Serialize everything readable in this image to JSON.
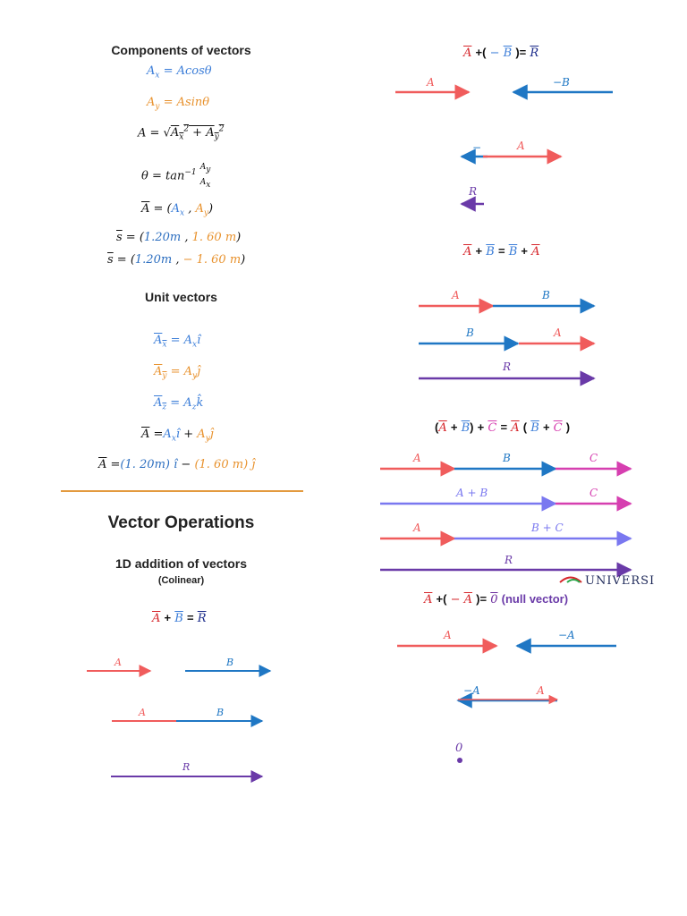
{
  "components": {
    "heading": "Components of vectors",
    "ax": "Ax = Acosθ",
    "ay": "Ay = Asinθ",
    "mag": "A = √(Ax² + Ay²)",
    "theta": "θ = tan⁻¹ (Ay / Ax)",
    "vecA": "A = (Ax , Ay)",
    "s1": "s = (1.20m , 1. 60 m)",
    "s2": "s = (1.20m , − 1. 60 m)"
  },
  "unit": {
    "heading": "Unit vectors",
    "ux": "Ax = Ax î",
    "uy": "Ay = Ay ĵ",
    "uz": "Az = Az k̂",
    "sum": "A = Ax î + Ay ĵ",
    "num": "A = (1. 20m) î − (1. 60 m) ĵ"
  },
  "operations": {
    "heading": "Vector Operations",
    "sub1": "1D addition of vectors",
    "sub2": "(Colinear)",
    "eq": "A + B = R"
  },
  "right": {
    "eq1": "A +( − B )= R",
    "eq2": "A + B = B + A",
    "eq3": "(A + B) + C = A ( B + C )",
    "eq4": "A +( − A )= 0 (null vector)",
    "null_label": "(null vector)",
    "logo": "UNIVERSI"
  },
  "labels": {
    "A": "A",
    "B": "B",
    "C": "C",
    "R": "R",
    "negA": "−A",
    "negB": "−B",
    "minus": "−",
    "AplusB": "A + B",
    "BplusC": "B + C",
    "zero": "0"
  },
  "colors": {
    "red": "#f05c5c",
    "blue": "#1f77c4",
    "purple": "#6a3aa8",
    "lavender": "#7a78f0",
    "magenta": "#d63fb0",
    "orange_rule": "#e39a3f"
  }
}
